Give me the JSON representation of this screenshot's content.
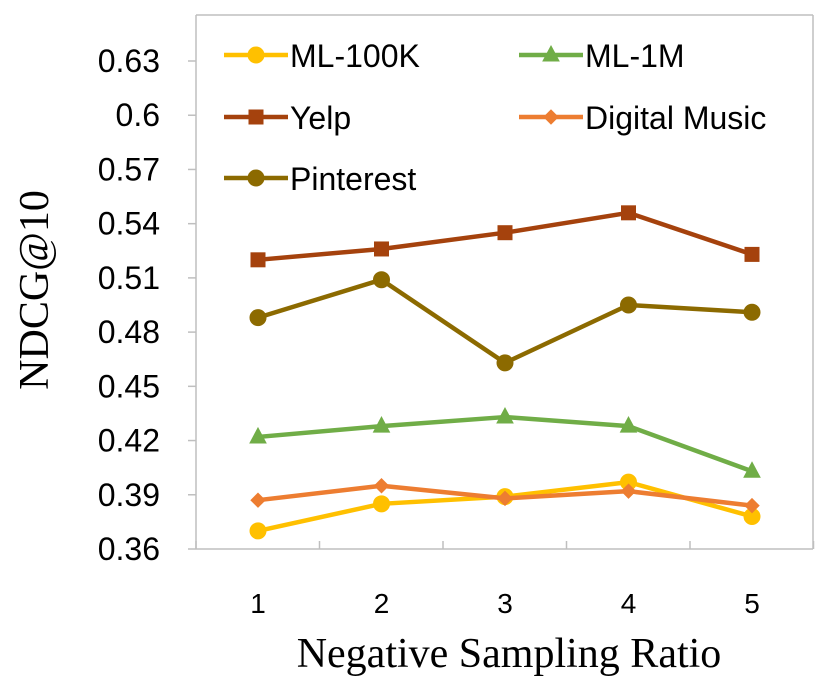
{
  "chart_data": {
    "type": "line",
    "title": "",
    "xlabel": "Negative Sampling Ratio",
    "ylabel": "NDCG@10",
    "x": [
      1,
      2,
      3,
      4,
      5
    ],
    "xtick_labels": [
      "1",
      "2",
      "3",
      "4",
      "5"
    ],
    "ylim": [
      0.36,
      0.65
    ],
    "yticks": [
      0.36,
      0.39,
      0.42,
      0.45,
      0.48,
      0.51,
      0.54,
      0.57,
      0.6,
      0.63
    ],
    "ytick_labels": [
      "0.36",
      "0.39",
      "0.42",
      "0.45",
      "0.48",
      "0.51",
      "0.54",
      "0.57",
      "0.6",
      "0.63"
    ],
    "grid": false,
    "legend_position": "top",
    "series": [
      {
        "name": "ML-100K",
        "color": "#ffc000",
        "marker": "circle",
        "values": [
          0.37,
          0.385,
          0.389,
          0.397,
          0.378
        ]
      },
      {
        "name": "ML-1M",
        "color": "#70ad47",
        "marker": "triangle",
        "values": [
          0.422,
          0.428,
          0.433,
          0.428,
          0.403
        ]
      },
      {
        "name": "Yelp",
        "color": "#a5420d",
        "marker": "square",
        "values": [
          0.52,
          0.526,
          0.535,
          0.546,
          0.523
        ]
      },
      {
        "name": "Digital Music",
        "color": "#ed7d31",
        "marker": "diamond",
        "values": [
          0.387,
          0.395,
          0.388,
          0.392,
          0.384
        ]
      },
      {
        "name": "Pinterest",
        "color": "#8c6a00",
        "marker": "circle",
        "values": [
          0.488,
          0.509,
          0.463,
          0.495,
          0.491
        ]
      }
    ]
  }
}
